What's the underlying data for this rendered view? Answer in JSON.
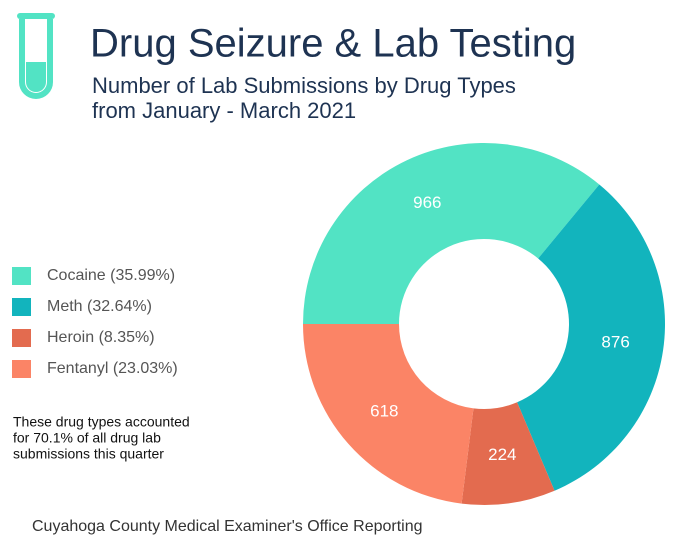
{
  "chart_data": {
    "type": "donut",
    "title": "Drug Seizure & Lab Testing",
    "subtitle": [
      "Number of Lab Submissions by Drug Types",
      "from January - March 2021"
    ],
    "categories": [
      "Cocaine (35.99%)",
      "Meth (32.64%)",
      "Heroin (8.35%)",
      "Fentanyl (23.03%)"
    ],
    "values": [
      966,
      876,
      224,
      618
    ],
    "colors": [
      "#52e3c4",
      "#12b4bd",
      "#e36b4f",
      "#fb8466"
    ],
    "note": [
      "These drug types accounted",
      "for 70.1% of all drug lab",
      "submissions this quarter"
    ],
    "source": "Cuyahoga County Medical Examiner's Office Reporting"
  }
}
